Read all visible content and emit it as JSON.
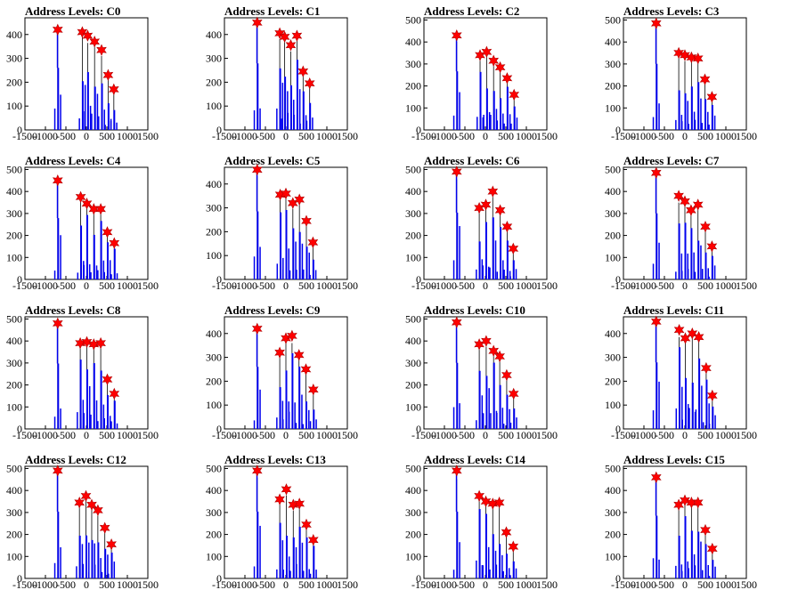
{
  "figure": {
    "x_ticks": [
      -1500,
      -1000,
      -500,
      0,
      500,
      1000,
      1500
    ],
    "xlim": [
      -1500,
      1500
    ],
    "colors": {
      "bar": "#0000ee",
      "star": "#ff0000",
      "line": "#000000"
    }
  },
  "chart_data": [
    {
      "type": "bar",
      "title": "Address Levels: C0",
      "ylim": [
        0,
        470
      ],
      "y_ticks": [
        0,
        100,
        200,
        300,
        400
      ],
      "peaks": [
        {
          "x": -700,
          "y": 420
        },
        {
          "x": -100,
          "y": 410
        },
        {
          "x": 30,
          "y": 395
        },
        {
          "x": 200,
          "y": 370
        },
        {
          "x": 370,
          "y": 335
        },
        {
          "x": 530,
          "y": 230
        },
        {
          "x": 670,
          "y": 170
        }
      ]
    },
    {
      "type": "bar",
      "title": "Address Levels: C1",
      "ylim": [
        0,
        470
      ],
      "y_ticks": [
        0,
        100,
        200,
        300,
        400
      ],
      "peaks": [
        {
          "x": -700,
          "y": 450
        },
        {
          "x": -150,
          "y": 405
        },
        {
          "x": -30,
          "y": 390
        },
        {
          "x": 120,
          "y": 355
        },
        {
          "x": 270,
          "y": 395
        },
        {
          "x": 420,
          "y": 245
        },
        {
          "x": 580,
          "y": 195
        }
      ]
    },
    {
      "type": "bar",
      "title": "Address Levels: C2",
      "ylim": [
        0,
        510
      ],
      "y_ticks": [
        0,
        100,
        200,
        300,
        400,
        500
      ],
      "peaks": [
        {
          "x": -700,
          "y": 430
        },
        {
          "x": -130,
          "y": 340
        },
        {
          "x": 30,
          "y": 355
        },
        {
          "x": 200,
          "y": 315
        },
        {
          "x": 360,
          "y": 285
        },
        {
          "x": 530,
          "y": 235
        },
        {
          "x": 700,
          "y": 160
        }
      ]
    },
    {
      "type": "bar",
      "title": "Address Levels: C3",
      "ylim": [
        0,
        510
      ],
      "y_ticks": [
        0,
        100,
        200,
        300,
        400,
        500
      ],
      "peaks": [
        {
          "x": -700,
          "y": 485
        },
        {
          "x": -150,
          "y": 350
        },
        {
          "x": 0,
          "y": 340
        },
        {
          "x": 160,
          "y": 330
        },
        {
          "x": 320,
          "y": 325
        },
        {
          "x": 490,
          "y": 230
        },
        {
          "x": 660,
          "y": 150
        }
      ]
    },
    {
      "type": "bar",
      "title": "Address Levels: C4",
      "ylim": [
        0,
        510
      ],
      "y_ticks": [
        0,
        100,
        200,
        300,
        400,
        500
      ],
      "peaks": [
        {
          "x": -700,
          "y": 450
        },
        {
          "x": -140,
          "y": 375
        },
        {
          "x": 10,
          "y": 345
        },
        {
          "x": 180,
          "y": 320
        },
        {
          "x": 350,
          "y": 320
        },
        {
          "x": 510,
          "y": 215
        },
        {
          "x": 680,
          "y": 165
        }
      ]
    },
    {
      "type": "bar",
      "title": "Address Levels: C5",
      "ylim": [
        0,
        470
      ],
      "y_ticks": [
        0,
        100,
        200,
        300,
        400
      ],
      "peaks": [
        {
          "x": -700,
          "y": 460
        },
        {
          "x": -140,
          "y": 355
        },
        {
          "x": 0,
          "y": 360
        },
        {
          "x": 170,
          "y": 320
        },
        {
          "x": 330,
          "y": 335
        },
        {
          "x": 500,
          "y": 245
        },
        {
          "x": 660,
          "y": 155
        }
      ]
    },
    {
      "type": "bar",
      "title": "Address Levels: C6",
      "ylim": [
        0,
        510
      ],
      "y_ticks": [
        0,
        100,
        200,
        300,
        400,
        500
      ],
      "peaks": [
        {
          "x": -700,
          "y": 490
        },
        {
          "x": -150,
          "y": 325
        },
        {
          "x": 10,
          "y": 340
        },
        {
          "x": 180,
          "y": 400
        },
        {
          "x": 360,
          "y": 315
        },
        {
          "x": 530,
          "y": 240
        },
        {
          "x": 680,
          "y": 140
        }
      ]
    },
    {
      "type": "bar",
      "title": "Address Levels: C7",
      "ylim": [
        0,
        510
      ],
      "y_ticks": [
        0,
        100,
        200,
        300,
        400,
        500
      ],
      "peaks": [
        {
          "x": -700,
          "y": 485
        },
        {
          "x": -150,
          "y": 380
        },
        {
          "x": 0,
          "y": 355
        },
        {
          "x": 150,
          "y": 315
        },
        {
          "x": 320,
          "y": 340
        },
        {
          "x": 500,
          "y": 240
        },
        {
          "x": 660,
          "y": 150
        }
      ]
    },
    {
      "type": "bar",
      "title": "Address Levels: C8",
      "ylim": [
        0,
        510
      ],
      "y_ticks": [
        0,
        100,
        200,
        300,
        400,
        500
      ],
      "peaks": [
        {
          "x": -700,
          "y": 480
        },
        {
          "x": -150,
          "y": 390
        },
        {
          "x": 10,
          "y": 395
        },
        {
          "x": 180,
          "y": 385
        },
        {
          "x": 350,
          "y": 390
        },
        {
          "x": 510,
          "y": 225
        },
        {
          "x": 680,
          "y": 160
        }
      ]
    },
    {
      "type": "bar",
      "title": "Address Levels: C9",
      "ylim": [
        0,
        470
      ],
      "y_ticks": [
        0,
        100,
        200,
        300,
        400
      ],
      "peaks": [
        {
          "x": -700,
          "y": 420
        },
        {
          "x": -150,
          "y": 320
        },
        {
          "x": 0,
          "y": 380
        },
        {
          "x": 150,
          "y": 390
        },
        {
          "x": 320,
          "y": 310
        },
        {
          "x": 490,
          "y": 250
        },
        {
          "x": 670,
          "y": 165
        }
      ]
    },
    {
      "type": "bar",
      "title": "Address Levels: C10",
      "ylim": [
        0,
        510
      ],
      "y_ticks": [
        0,
        100,
        200,
        300,
        400,
        500
      ],
      "peaks": [
        {
          "x": -700,
          "y": 485
        },
        {
          "x": -150,
          "y": 385
        },
        {
          "x": 20,
          "y": 400
        },
        {
          "x": 200,
          "y": 355
        },
        {
          "x": 350,
          "y": 330
        },
        {
          "x": 520,
          "y": 245
        },
        {
          "x": 690,
          "y": 160
        }
      ]
    },
    {
      "type": "bar",
      "title": "Address Levels: C11",
      "ylim": [
        0,
        470
      ],
      "y_ticks": [
        0,
        100,
        200,
        300,
        400
      ],
      "peaks": [
        {
          "x": -700,
          "y": 450
        },
        {
          "x": -140,
          "y": 415
        },
        {
          "x": 10,
          "y": 380
        },
        {
          "x": 180,
          "y": 400
        },
        {
          "x": 340,
          "y": 385
        },
        {
          "x": 520,
          "y": 255
        },
        {
          "x": 670,
          "y": 140
        }
      ]
    },
    {
      "type": "bar",
      "title": "Address Levels: C12",
      "ylim": [
        0,
        510
      ],
      "y_ticks": [
        0,
        100,
        200,
        300,
        400,
        500
      ],
      "peaks": [
        {
          "x": -700,
          "y": 490
        },
        {
          "x": -170,
          "y": 345
        },
        {
          "x": -10,
          "y": 375
        },
        {
          "x": 130,
          "y": 335
        },
        {
          "x": 280,
          "y": 310
        },
        {
          "x": 450,
          "y": 230
        },
        {
          "x": 610,
          "y": 155
        }
      ]
    },
    {
      "type": "bar",
      "title": "Address Levels: C13",
      "ylim": [
        0,
        510
      ],
      "y_ticks": [
        0,
        100,
        200,
        300,
        400,
        500
      ],
      "peaks": [
        {
          "x": -700,
          "y": 490
        },
        {
          "x": -150,
          "y": 360
        },
        {
          "x": 10,
          "y": 405
        },
        {
          "x": 180,
          "y": 335
        },
        {
          "x": 330,
          "y": 340
        },
        {
          "x": 500,
          "y": 245
        },
        {
          "x": 670,
          "y": 175
        }
      ]
    },
    {
      "type": "bar",
      "title": "Address Levels: C14",
      "ylim": [
        0,
        510
      ],
      "y_ticks": [
        0,
        100,
        200,
        300,
        400,
        500
      ],
      "peaks": [
        {
          "x": -700,
          "y": 490
        },
        {
          "x": -150,
          "y": 375
        },
        {
          "x": 10,
          "y": 350
        },
        {
          "x": 180,
          "y": 340
        },
        {
          "x": 340,
          "y": 345
        },
        {
          "x": 510,
          "y": 210
        },
        {
          "x": 680,
          "y": 145
        }
      ]
    },
    {
      "type": "bar",
      "title": "Address Levels: C15",
      "ylim": [
        0,
        510
      ],
      "y_ticks": [
        0,
        100,
        200,
        300,
        400,
        500
      ],
      "peaks": [
        {
          "x": -700,
          "y": 460
        },
        {
          "x": -150,
          "y": 335
        },
        {
          "x": 0,
          "y": 355
        },
        {
          "x": 160,
          "y": 345
        },
        {
          "x": 320,
          "y": 345
        },
        {
          "x": 500,
          "y": 220
        },
        {
          "x": 670,
          "y": 135
        }
      ]
    }
  ]
}
